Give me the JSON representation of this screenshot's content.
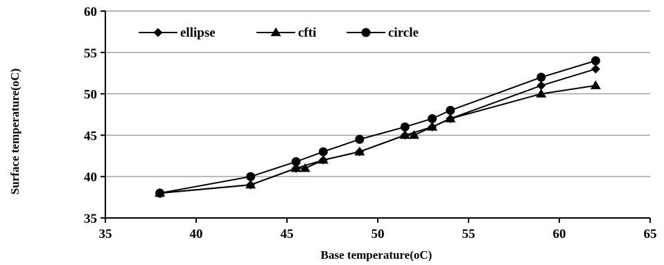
{
  "chart_data": {
    "type": "line",
    "title": "",
    "xlabel": "Base temperature(oC)",
    "ylabel": "Surface temperature(oC)",
    "xlim": [
      35,
      65
    ],
    "ylim": [
      35,
      60
    ],
    "xticks": [
      "35",
      "40",
      "45",
      "50",
      "55",
      "60",
      "65"
    ],
    "yticks": [
      "35",
      "40",
      "45",
      "50",
      "55",
      "60"
    ],
    "grid": "horizontal",
    "legend_position": "top-left",
    "series": [
      {
        "name": "ellipse",
        "marker": "diamond",
        "x": [
          38,
          43,
          45.5,
          47,
          49,
          51.5,
          53,
          54,
          59,
          62
        ],
        "y": [
          38,
          39,
          41,
          42,
          43,
          45,
          46,
          47,
          51,
          53
        ]
      },
      {
        "name": "cfti",
        "marker": "triangle",
        "x": [
          38,
          43,
          45.5,
          46,
          47,
          49,
          51.5,
          52,
          53,
          54,
          59,
          62
        ],
        "y": [
          38,
          39,
          41,
          41,
          42,
          43,
          45,
          45,
          46,
          47,
          50,
          51
        ]
      },
      {
        "name": "circle",
        "marker": "circle",
        "x": [
          38,
          43,
          45.5,
          47,
          49,
          51.5,
          53,
          54,
          59,
          62
        ],
        "y": [
          38,
          40,
          41.8,
          43,
          44.5,
          46,
          47,
          48,
          52,
          54
        ]
      }
    ]
  }
}
